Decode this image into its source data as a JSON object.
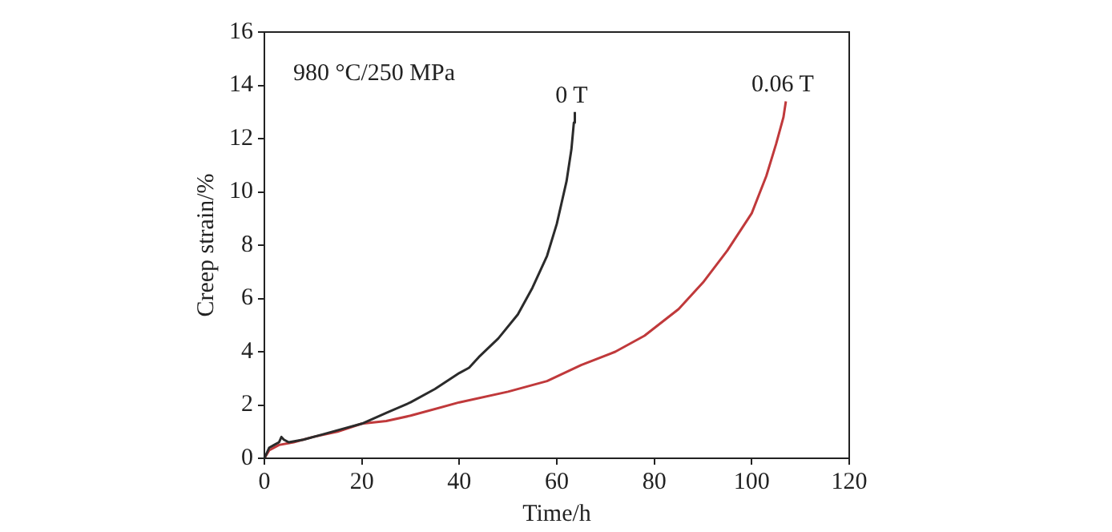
{
  "chart_data": {
    "type": "line",
    "xlabel": "Time/h",
    "ylabel": "Creep strain/%",
    "annotations": [
      "980 °C/250 MPa"
    ],
    "xlim": [
      0,
      120
    ],
    "xticks": [
      0,
      20,
      40,
      60,
      80,
      100,
      120
    ],
    "ylim": [
      0,
      16
    ],
    "yticks": [
      0,
      2,
      4,
      6,
      8,
      10,
      12,
      14,
      16
    ],
    "grid": false,
    "legend": false,
    "marker": "none",
    "line_style": "solid",
    "series": [
      {
        "name": "0 T",
        "color": "#2b2b2b",
        "x": [
          0,
          0.5,
          1,
          2,
          3,
          3.5,
          4,
          5,
          8,
          12,
          16,
          20,
          25,
          30,
          35,
          40,
          42,
          44,
          48,
          52,
          55,
          58,
          60,
          62,
          63,
          63.5,
          63.7
        ],
        "values": [
          0,
          0.2,
          0.4,
          0.5,
          0.6,
          0.8,
          0.7,
          0.6,
          0.7,
          0.9,
          1.1,
          1.3,
          1.7,
          2.1,
          2.6,
          3.2,
          3.4,
          3.8,
          4.5,
          5.4,
          6.4,
          7.6,
          8.8,
          10.4,
          11.6,
          12.6,
          13
        ]
      },
      {
        "name": "0.06 T",
        "color": "#c0393b",
        "x": [
          0,
          1,
          3,
          6,
          10,
          15,
          20,
          25,
          30,
          40,
          50,
          58,
          65,
          72,
          78,
          85,
          90,
          95,
          100,
          103,
          105,
          106.5,
          107
        ],
        "values": [
          0,
          0.3,
          0.5,
          0.6,
          0.8,
          1.0,
          1.3,
          1.4,
          1.6,
          2.1,
          2.5,
          2.9,
          3.5,
          4.0,
          4.6,
          5.6,
          6.6,
          7.8,
          9.2,
          10.6,
          11.8,
          12.8,
          13.4
        ]
      }
    ]
  }
}
